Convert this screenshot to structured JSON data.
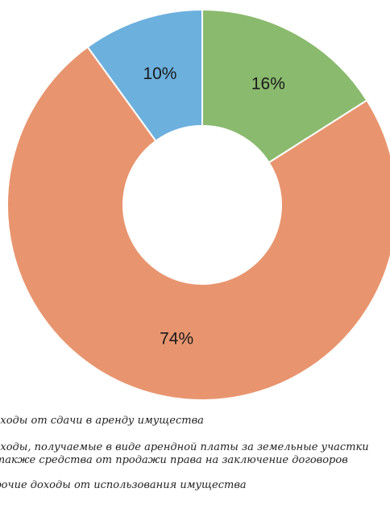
{
  "chart_data": {
    "type": "pie",
    "donut": true,
    "start": "top",
    "direction": "clockwise",
    "slices": [
      {
        "label": "Доходы от сдачи в аренду имущества",
        "value": 16,
        "display": "16%",
        "color": "#8aba6e"
      },
      {
        "label": "Доходы, получаемые в виде арендной платы за земельные участки, а также средства от продажи права на заключение договоров",
        "value": 74,
        "display": "74%",
        "color": "#e8956f"
      },
      {
        "label": "Прочие доходы от использования имущества",
        "value": 10,
        "display": "10%",
        "color": "#6cb0de"
      }
    ],
    "legend": {
      "placement": "bottom",
      "lines": [
        "Доходы от сдачи в аренду имущества",
        "Доходы, получаемые в виде арендной платы за земельные участки",
        "а также средства от продажи права на заключение договоров",
        "Прочие доходы от использования имущества"
      ]
    }
  }
}
